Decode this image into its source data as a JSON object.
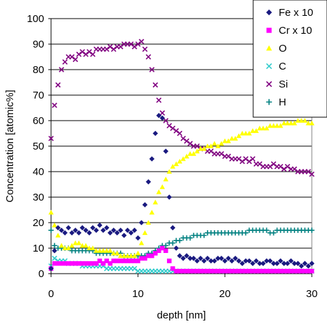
{
  "chart_data": {
    "type": "scatter",
    "title": "",
    "xlabel": "depth [nm]",
    "ylabel": "Concentration [atomic%]",
    "xlim": [
      0,
      30
    ],
    "ylim": [
      0,
      100
    ],
    "xticks": [
      "0",
      "10",
      "20",
      "30"
    ],
    "yticks": [
      "0",
      "10",
      "20",
      "30",
      "40",
      "50",
      "60",
      "70",
      "80",
      "90",
      "100"
    ],
    "grid": "horizontal",
    "legend_position": "top-right",
    "series": [
      {
        "name": "Fe x 10",
        "color": "#1a1a80",
        "marker": "diamond",
        "x": [
          0,
          0.4,
          0.8,
          1.2,
          1.6,
          2,
          2.4,
          2.8,
          3.2,
          3.6,
          4,
          4.4,
          4.8,
          5.2,
          5.6,
          6,
          6.4,
          6.8,
          7.2,
          7.6,
          8,
          8.4,
          8.8,
          9.2,
          9.6,
          10,
          10.4,
          10.8,
          11.2,
          11.6,
          12,
          12.4,
          12.8,
          13.2,
          13.6,
          14,
          14.4,
          14.8,
          15.2,
          15.6,
          16,
          16.4,
          16.8,
          17.2,
          17.6,
          18,
          18.4,
          18.8,
          19.2,
          19.6,
          20,
          20.4,
          20.8,
          21.2,
          21.6,
          22,
          22.4,
          22.8,
          23.2,
          23.6,
          24,
          24.4,
          24.8,
          25.2,
          25.6,
          26,
          26.4,
          26.8,
          27.2,
          27.6,
          28,
          28.4,
          28.8,
          29.2,
          29.6,
          30
        ],
        "y": [
          2,
          9,
          18,
          17,
          16,
          18,
          16,
          17,
          16,
          18,
          17,
          16,
          18,
          17,
          19,
          17,
          18,
          16,
          17,
          16,
          17,
          15,
          17,
          16,
          17,
          14,
          20,
          27,
          36,
          45,
          55,
          62,
          61,
          48,
          30,
          18,
          10,
          7,
          6,
          7,
          6,
          6,
          5,
          6,
          5,
          6,
          5,
          5,
          6,
          6,
          5,
          6,
          5,
          6,
          5,
          4,
          5,
          5,
          4,
          5,
          4,
          4,
          5,
          5,
          4,
          4,
          5,
          4,
          4,
          5,
          4,
          4,
          3,
          4,
          3,
          4
        ]
      },
      {
        "name": "Cr x 10",
        "color": "#ff00ff",
        "marker": "square",
        "x": [
          0,
          0.4,
          0.8,
          1.2,
          1.6,
          2,
          2.4,
          2.8,
          3.2,
          3.6,
          4,
          4.4,
          4.8,
          5.2,
          5.6,
          6,
          6.4,
          6.8,
          7.2,
          7.6,
          8,
          8.4,
          8.8,
          9.2,
          9.6,
          10,
          10.4,
          10.8,
          11.2,
          11.6,
          12,
          12.4,
          12.8,
          13.2,
          13.6,
          14,
          14.4,
          14.8,
          15.2,
          15.6,
          16,
          16.4,
          16.8,
          17.2,
          17.6,
          18,
          18.4,
          18.8,
          19.2,
          19.6,
          20,
          20.4,
          20.8,
          21.2,
          21.6,
          22,
          22.4,
          22.8,
          23.2,
          23.6,
          24,
          24.4,
          24.8,
          25.2,
          25.6,
          26,
          26.4,
          26.8,
          27.2,
          27.6,
          28,
          28.4,
          28.8,
          29.2,
          29.6,
          30
        ],
        "y": [
          2,
          4,
          4,
          4,
          4,
          4,
          4,
          4,
          4,
          4,
          4,
          4,
          4,
          4,
          5,
          4,
          5,
          4,
          5,
          5,
          5,
          5,
          5,
          5,
          5,
          5,
          6,
          6,
          7,
          7,
          8,
          9,
          10,
          9,
          5,
          2,
          1,
          1,
          1,
          1,
          1,
          1,
          1,
          1,
          1,
          1,
          1,
          1,
          1,
          1,
          1,
          1,
          1,
          1,
          1,
          1,
          1,
          1,
          1,
          1,
          1,
          1,
          1,
          1,
          1,
          1,
          1,
          1,
          1,
          1,
          1,
          1,
          1,
          1,
          1,
          1
        ]
      },
      {
        "name": "O",
        "color": "#ffff00",
        "marker": "triangle",
        "x": [
          0,
          0.4,
          0.8,
          1.2,
          1.6,
          2,
          2.4,
          2.8,
          3.2,
          3.6,
          4,
          4.4,
          4.8,
          5.2,
          5.6,
          6,
          6.4,
          6.8,
          7.2,
          7.6,
          8,
          8.4,
          8.8,
          9.2,
          9.6,
          10,
          10.4,
          10.8,
          11.2,
          11.6,
          12,
          12.4,
          12.8,
          13.2,
          13.6,
          14,
          14.4,
          14.8,
          15.2,
          15.6,
          16,
          16.4,
          16.8,
          17.2,
          17.6,
          18,
          18.4,
          18.8,
          19.2,
          19.6,
          20,
          20.4,
          20.8,
          21.2,
          21.6,
          22,
          22.4,
          22.8,
          23.2,
          23.6,
          24,
          24.4,
          24.8,
          25.2,
          25.6,
          26,
          26.4,
          26.8,
          27.2,
          27.6,
          28,
          28.4,
          28.8,
          29.2,
          29.6,
          30
        ],
        "y": [
          24,
          19,
          15,
          11,
          10,
          10,
          11,
          12,
          12,
          11,
          11,
          10,
          10,
          9,
          9,
          9,
          9,
          9,
          8,
          8,
          7,
          7,
          7,
          7,
          7,
          8,
          12,
          16,
          20,
          24,
          28,
          32,
          34,
          37,
          40,
          42,
          43,
          44,
          45,
          46,
          47,
          47,
          48,
          49,
          49,
          50,
          50,
          51,
          50,
          51,
          52,
          52,
          53,
          53,
          54,
          55,
          55,
          55,
          56,
          56,
          57,
          57,
          57,
          58,
          58,
          58,
          58,
          59,
          59,
          59,
          59,
          60,
          60,
          60,
          59,
          59
        ]
      },
      {
        "name": "C",
        "color": "#33cccc",
        "marker": "x",
        "x": [
          0,
          0.4,
          0.8,
          1.2,
          1.6,
          2,
          2.4,
          2.8,
          3.2,
          3.6,
          4,
          4.4,
          4.8,
          5.2,
          5.6,
          6,
          6.4,
          6.8,
          7.2,
          7.6,
          8,
          8.4,
          8.8,
          9.2,
          9.6,
          10,
          10.4,
          10.8,
          11.2,
          11.6,
          12,
          12.4,
          12.8,
          13.2,
          13.6,
          14,
          14.4,
          14.8,
          15.2,
          15.6,
          16,
          16.4,
          16.8,
          17.2,
          17.6,
          18,
          18.4,
          18.8,
          19.2,
          19.6,
          20,
          20.4,
          20.8,
          21.2,
          21.6,
          22,
          22.4,
          22.8,
          23.2,
          23.6,
          24,
          24.4,
          24.8,
          25.2,
          25.6,
          26,
          26.4,
          26.8,
          27.2,
          27.6,
          28,
          28.4,
          28.8,
          29.2,
          29.6,
          30
        ],
        "y": [
          3,
          6,
          5,
          5,
          5,
          4,
          4,
          4,
          4,
          3,
          3,
          3,
          3,
          3,
          3,
          3,
          2,
          2,
          2,
          2,
          2,
          2,
          2,
          2,
          2,
          1,
          1,
          1,
          1,
          1,
          1,
          1,
          1,
          1,
          1,
          1,
          1,
          1,
          1,
          1,
          1,
          1,
          1,
          1,
          1,
          1,
          1,
          1,
          1,
          1,
          1,
          1,
          1,
          1,
          1,
          1,
          1,
          1,
          1,
          1,
          1,
          1,
          1,
          1,
          1,
          1,
          1,
          1,
          1,
          1,
          1,
          1,
          1,
          1,
          1,
          1
        ]
      },
      {
        "name": "Si",
        "color": "#800080",
        "marker": "x",
        "x": [
          0,
          0.4,
          0.8,
          1.2,
          1.6,
          2,
          2.4,
          2.8,
          3.2,
          3.6,
          4,
          4.4,
          4.8,
          5.2,
          5.6,
          6,
          6.4,
          6.8,
          7.2,
          7.6,
          8,
          8.4,
          8.8,
          9.2,
          9.6,
          10,
          10.4,
          10.8,
          11.2,
          11.6,
          12,
          12.4,
          12.8,
          13.2,
          13.6,
          14,
          14.4,
          14.8,
          15.2,
          15.6,
          16,
          16.4,
          16.8,
          17.2,
          17.6,
          18,
          18.4,
          18.8,
          19.2,
          19.6,
          20,
          20.4,
          20.8,
          21.2,
          21.6,
          22,
          22.4,
          22.8,
          23.2,
          23.6,
          24,
          24.4,
          24.8,
          25.2,
          25.6,
          26,
          26.4,
          26.8,
          27.2,
          27.6,
          28,
          28.4,
          28.8,
          29.2,
          29.6,
          30
        ],
        "y": [
          53,
          66,
          74,
          80,
          83,
          85,
          85,
          84,
          86,
          87,
          86,
          87,
          86,
          88,
          88,
          88,
          88,
          89,
          88,
          89,
          89,
          90,
          90,
          90,
          89,
          90,
          91,
          88,
          85,
          80,
          74,
          68,
          63,
          60,
          58,
          57,
          56,
          55,
          53,
          52,
          51,
          50,
          50,
          49,
          49,
          48,
          48,
          47,
          47,
          47,
          46,
          46,
          45,
          45,
          45,
          44,
          45,
          44,
          45,
          43,
          43,
          42,
          42,
          42,
          43,
          42,
          42,
          41,
          42,
          41,
          41,
          40,
          40,
          40,
          40,
          39
        ]
      },
      {
        "name": "H",
        "color": "#008080",
        "marker": "plus",
        "x": [
          0,
          0.4,
          0.8,
          1.2,
          1.6,
          2,
          2.4,
          2.8,
          3.2,
          3.6,
          4,
          4.4,
          4.8,
          5.2,
          5.6,
          6,
          6.4,
          6.8,
          7.2,
          7.6,
          8,
          8.4,
          8.8,
          9.2,
          9.6,
          10,
          10.4,
          10.8,
          11.2,
          11.6,
          12,
          12.4,
          12.8,
          13.2,
          13.6,
          14,
          14.4,
          14.8,
          15.2,
          15.6,
          16,
          16.4,
          16.8,
          17.2,
          17.6,
          18,
          18.4,
          18.8,
          19.2,
          19.6,
          20,
          20.4,
          20.8,
          21.2,
          21.6,
          22,
          22.4,
          22.8,
          23.2,
          23.6,
          24,
          24.4,
          24.8,
          25.2,
          25.6,
          26,
          26.4,
          26.8,
          27.2,
          27.6,
          28,
          28.4,
          28.8,
          29.2,
          29.6,
          30
        ],
        "y": [
          17,
          11,
          10,
          10,
          10,
          10,
          9,
          9,
          9,
          9,
          9,
          9,
          9,
          8,
          8,
          8,
          8,
          8,
          8,
          8,
          8,
          7,
          7,
          7,
          7,
          7,
          7,
          7,
          8,
          8,
          9,
          10,
          11,
          11,
          12,
          12,
          13,
          13,
          14,
          14,
          14,
          15,
          15,
          15,
          15,
          16,
          16,
          16,
          16,
          16,
          16,
          16,
          16,
          16,
          16,
          16,
          16,
          17,
          17,
          17,
          17,
          17,
          17,
          16,
          16,
          17,
          17,
          17,
          17,
          17,
          17,
          17,
          17,
          17,
          17,
          17
        ]
      }
    ]
  }
}
